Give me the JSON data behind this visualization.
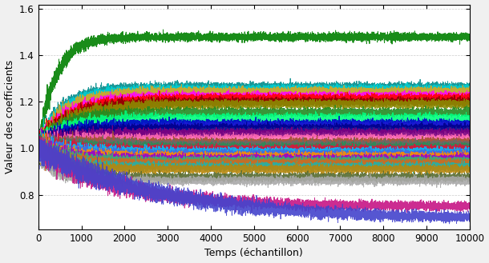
{
  "xlabel": "Temps (échantillon)",
  "ylabel": "Valeur des coefficients",
  "xlim": [
    0,
    10000
  ],
  "ylim": [
    0.65,
    1.62
  ],
  "yticks": [
    0.8,
    1.0,
    1.2,
    1.4,
    1.6
  ],
  "xticks": [
    0,
    1000,
    2000,
    3000,
    4000,
    5000,
    6000,
    7000,
    8000,
    9000,
    10000
  ],
  "n_samples": 10000,
  "n_sensors": 30,
  "final_values": [
    1.48,
    1.265,
    1.255,
    1.245,
    1.225,
    1.215,
    1.2,
    1.19,
    1.155,
    1.13,
    1.105,
    1.085,
    1.065,
    1.04,
    1.025,
    1.015,
    1.005,
    0.995,
    0.985,
    0.975,
    0.965,
    0.955,
    0.945,
    0.935,
    0.92,
    0.91,
    0.875,
    0.86,
    0.75,
    0.695
  ],
  "convergence_taus": [
    400,
    550,
    600,
    650,
    700,
    750,
    780,
    800,
    650,
    700,
    720,
    740,
    760,
    700,
    680,
    660,
    640,
    620,
    600,
    580,
    560,
    540,
    520,
    500,
    480,
    460,
    440,
    420,
    1800,
    2800
  ],
  "colors": [
    "#008000",
    "#008B8B",
    "#00CED1",
    "#DAA520",
    "#FF00FF",
    "#FF0000",
    "#8B0000",
    "#8B8B00",
    "#228B22",
    "#00FF7F",
    "#0000CD",
    "#00008B",
    "#800080",
    "#FF69B4",
    "#A0522D",
    "#696969",
    "#2E8B57",
    "#DC143C",
    "#00BFFF",
    "#4169E1",
    "#FF8C00",
    "#9400D3",
    "#3CB371",
    "#D2691E",
    "#20B2AA",
    "#B8860B",
    "#556B2F",
    "#A9A9A9",
    "#C71585",
    "#4444CC"
  ],
  "noise_scale": 0.018,
  "steady_noise": 0.008,
  "figsize": [
    6.1,
    3.29
  ],
  "dpi": 100,
  "bg_color": "#f0f0f0",
  "plot_bg_color": "#ffffff",
  "grid_color": "#c0c0c0",
  "grid_linestyle": "--",
  "grid_alpha": 0.8
}
